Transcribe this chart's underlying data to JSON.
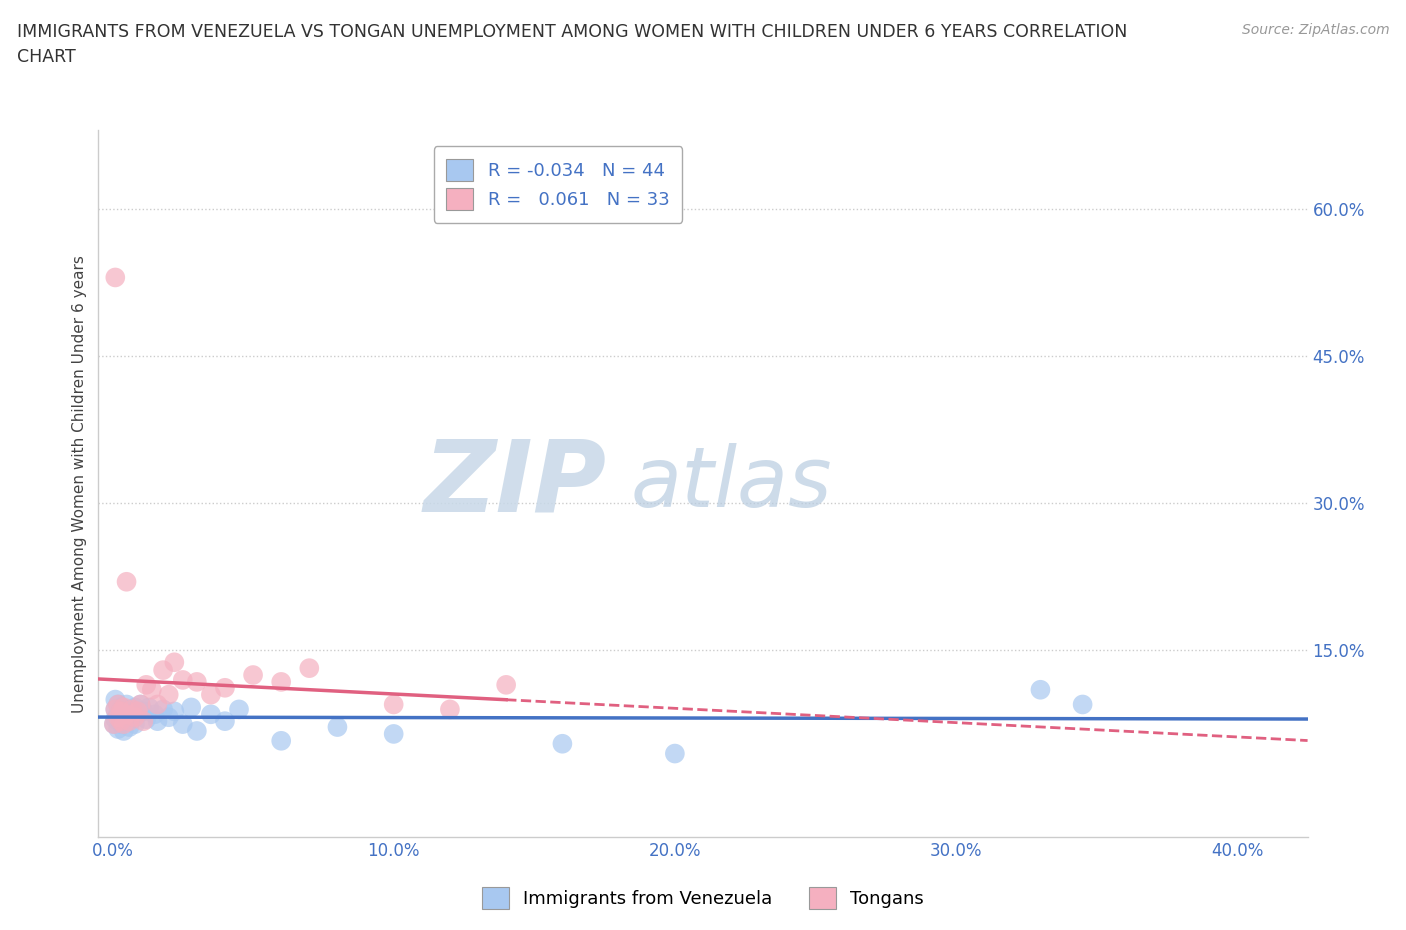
{
  "title": "IMMIGRANTS FROM VENEZUELA VS TONGAN UNEMPLOYMENT AMONG WOMEN WITH CHILDREN UNDER 6 YEARS CORRELATION\nCHART",
  "source": "Source: ZipAtlas.com",
  "ylabel": "Unemployment Among Women with Children Under 6 years",
  "ylabel_ticks": [
    "15.0%",
    "30.0%",
    "45.0%",
    "60.0%"
  ],
  "xlabel_ticks": [
    "0.0%",
    "10.0%",
    "20.0%",
    "30.0%",
    "40.0%"
  ],
  "xlim": [
    -0.005,
    0.425
  ],
  "ylim": [
    -0.04,
    0.68
  ],
  "ytick_vals": [
    0.15,
    0.3,
    0.45,
    0.6
  ],
  "xtick_vals": [
    0.0,
    0.1,
    0.2,
    0.3,
    0.4
  ],
  "legend_R_blue": "-0.034",
  "legend_N_blue": "44",
  "legend_R_pink": "0.061",
  "legend_N_pink": "33",
  "blue_scatter_x": [
    0.0005,
    0.001,
    0.001,
    0.001,
    0.002,
    0.002,
    0.002,
    0.003,
    0.003,
    0.003,
    0.004,
    0.004,
    0.005,
    0.005,
    0.005,
    0.006,
    0.006,
    0.007,
    0.007,
    0.008,
    0.008,
    0.009,
    0.01,
    0.011,
    0.012,
    0.013,
    0.015,
    0.016,
    0.018,
    0.02,
    0.022,
    0.025,
    0.028,
    0.03,
    0.035,
    0.04,
    0.045,
    0.06,
    0.08,
    0.1,
    0.16,
    0.2,
    0.33,
    0.345
  ],
  "blue_scatter_y": [
    0.075,
    0.09,
    0.1,
    0.08,
    0.095,
    0.085,
    0.07,
    0.088,
    0.075,
    0.092,
    0.082,
    0.068,
    0.09,
    0.078,
    0.095,
    0.085,
    0.072,
    0.088,
    0.08,
    0.092,
    0.075,
    0.085,
    0.095,
    0.088,
    0.08,
    0.092,
    0.085,
    0.078,
    0.09,
    0.082,
    0.088,
    0.075,
    0.092,
    0.068,
    0.085,
    0.078,
    0.09,
    0.058,
    0.072,
    0.065,
    0.055,
    0.045,
    0.11,
    0.095
  ],
  "pink_scatter_x": [
    0.0005,
    0.001,
    0.001,
    0.002,
    0.002,
    0.003,
    0.003,
    0.004,
    0.004,
    0.005,
    0.005,
    0.006,
    0.007,
    0.008,
    0.009,
    0.01,
    0.011,
    0.012,
    0.014,
    0.016,
    0.018,
    0.02,
    0.022,
    0.025,
    0.03,
    0.035,
    0.04,
    0.05,
    0.06,
    0.07,
    0.1,
    0.12,
    0.14
  ],
  "pink_scatter_y": [
    0.075,
    0.09,
    0.53,
    0.082,
    0.095,
    0.078,
    0.088,
    0.092,
    0.075,
    0.085,
    0.22,
    0.078,
    0.09,
    0.082,
    0.088,
    0.095,
    0.078,
    0.115,
    0.11,
    0.095,
    0.13,
    0.105,
    0.138,
    0.12,
    0.118,
    0.105,
    0.112,
    0.125,
    0.118,
    0.132,
    0.095,
    0.09,
    0.115
  ],
  "blue_color": "#a8c8f0",
  "pink_color": "#f5b0c0",
  "blue_line_color": "#4472c4",
  "pink_line_color": "#e06080",
  "grid_color": "#cccccc",
  "grid_style": "dotted",
  "title_color": "#333333",
  "source_color": "#999999",
  "axis_label_color": "#444444",
  "tick_label_color": "#4472c4",
  "background_color": "#ffffff",
  "watermark_zip_color": "#c8d8e8",
  "watermark_atlas_color": "#c8d8e8"
}
